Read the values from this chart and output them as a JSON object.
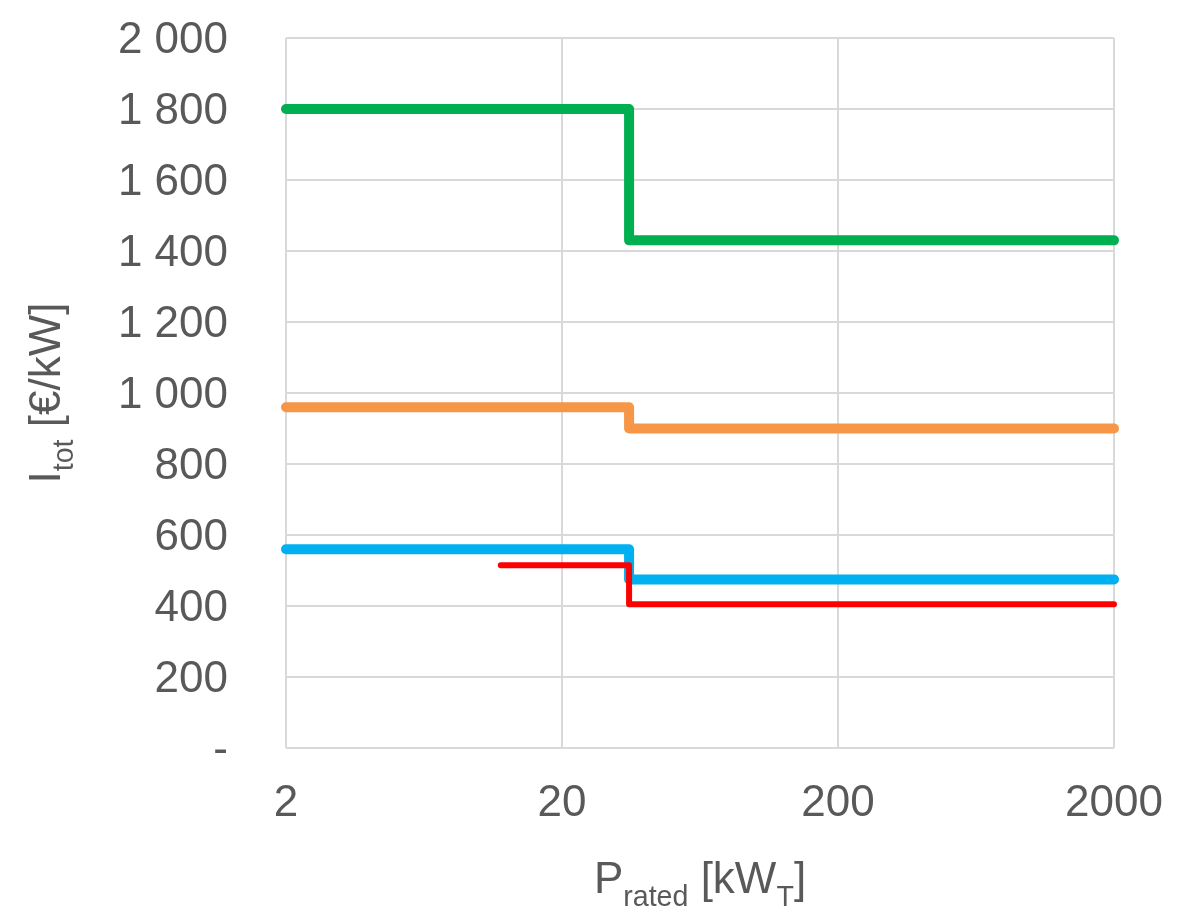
{
  "chart_data": {
    "type": "step",
    "xlabel": "P$_{rated}$ [kW$_{T}$]",
    "ylabel": "I$_{tot}$ [€/kW]",
    "log": "x",
    "xlim": [
      2,
      2000
    ],
    "xticks": [
      2,
      20,
      200,
      2000
    ],
    "ylim": [
      0,
      2000
    ],
    "yticks": [
      {
        "value": 0,
        "label": "-"
      },
      200,
      400,
      600,
      800,
      {
        "value": 1000,
        "label": "1 000"
      },
      {
        "value": 1200,
        "label": "1 200"
      },
      {
        "value": 1400,
        "label": "1 400"
      },
      {
        "value": 1600,
        "label": "1 600"
      },
      {
        "value": 1800,
        "label": "1 800"
      },
      {
        "value": 2000,
        "label": "2 000"
      }
    ],
    "grid": true,
    "series": [
      {
        "color": "#00b050",
        "x": [
          2,
          35,
          2000
        ],
        "values": [
          1800,
          1430,
          1430
        ]
      },
      {
        "color": "#f79646",
        "x": [
          2,
          35,
          2000
        ],
        "values": [
          960,
          900,
          900
        ]
      },
      {
        "color": "#00b0f0",
        "x": [
          2,
          35,
          2000
        ],
        "values": [
          560,
          475,
          475
        ]
      },
      {
        "color": "#ff0000",
        "x": [
          12,
          35,
          2000
        ],
        "values": [
          515,
          405,
          405
        ]
      }
    ]
  }
}
